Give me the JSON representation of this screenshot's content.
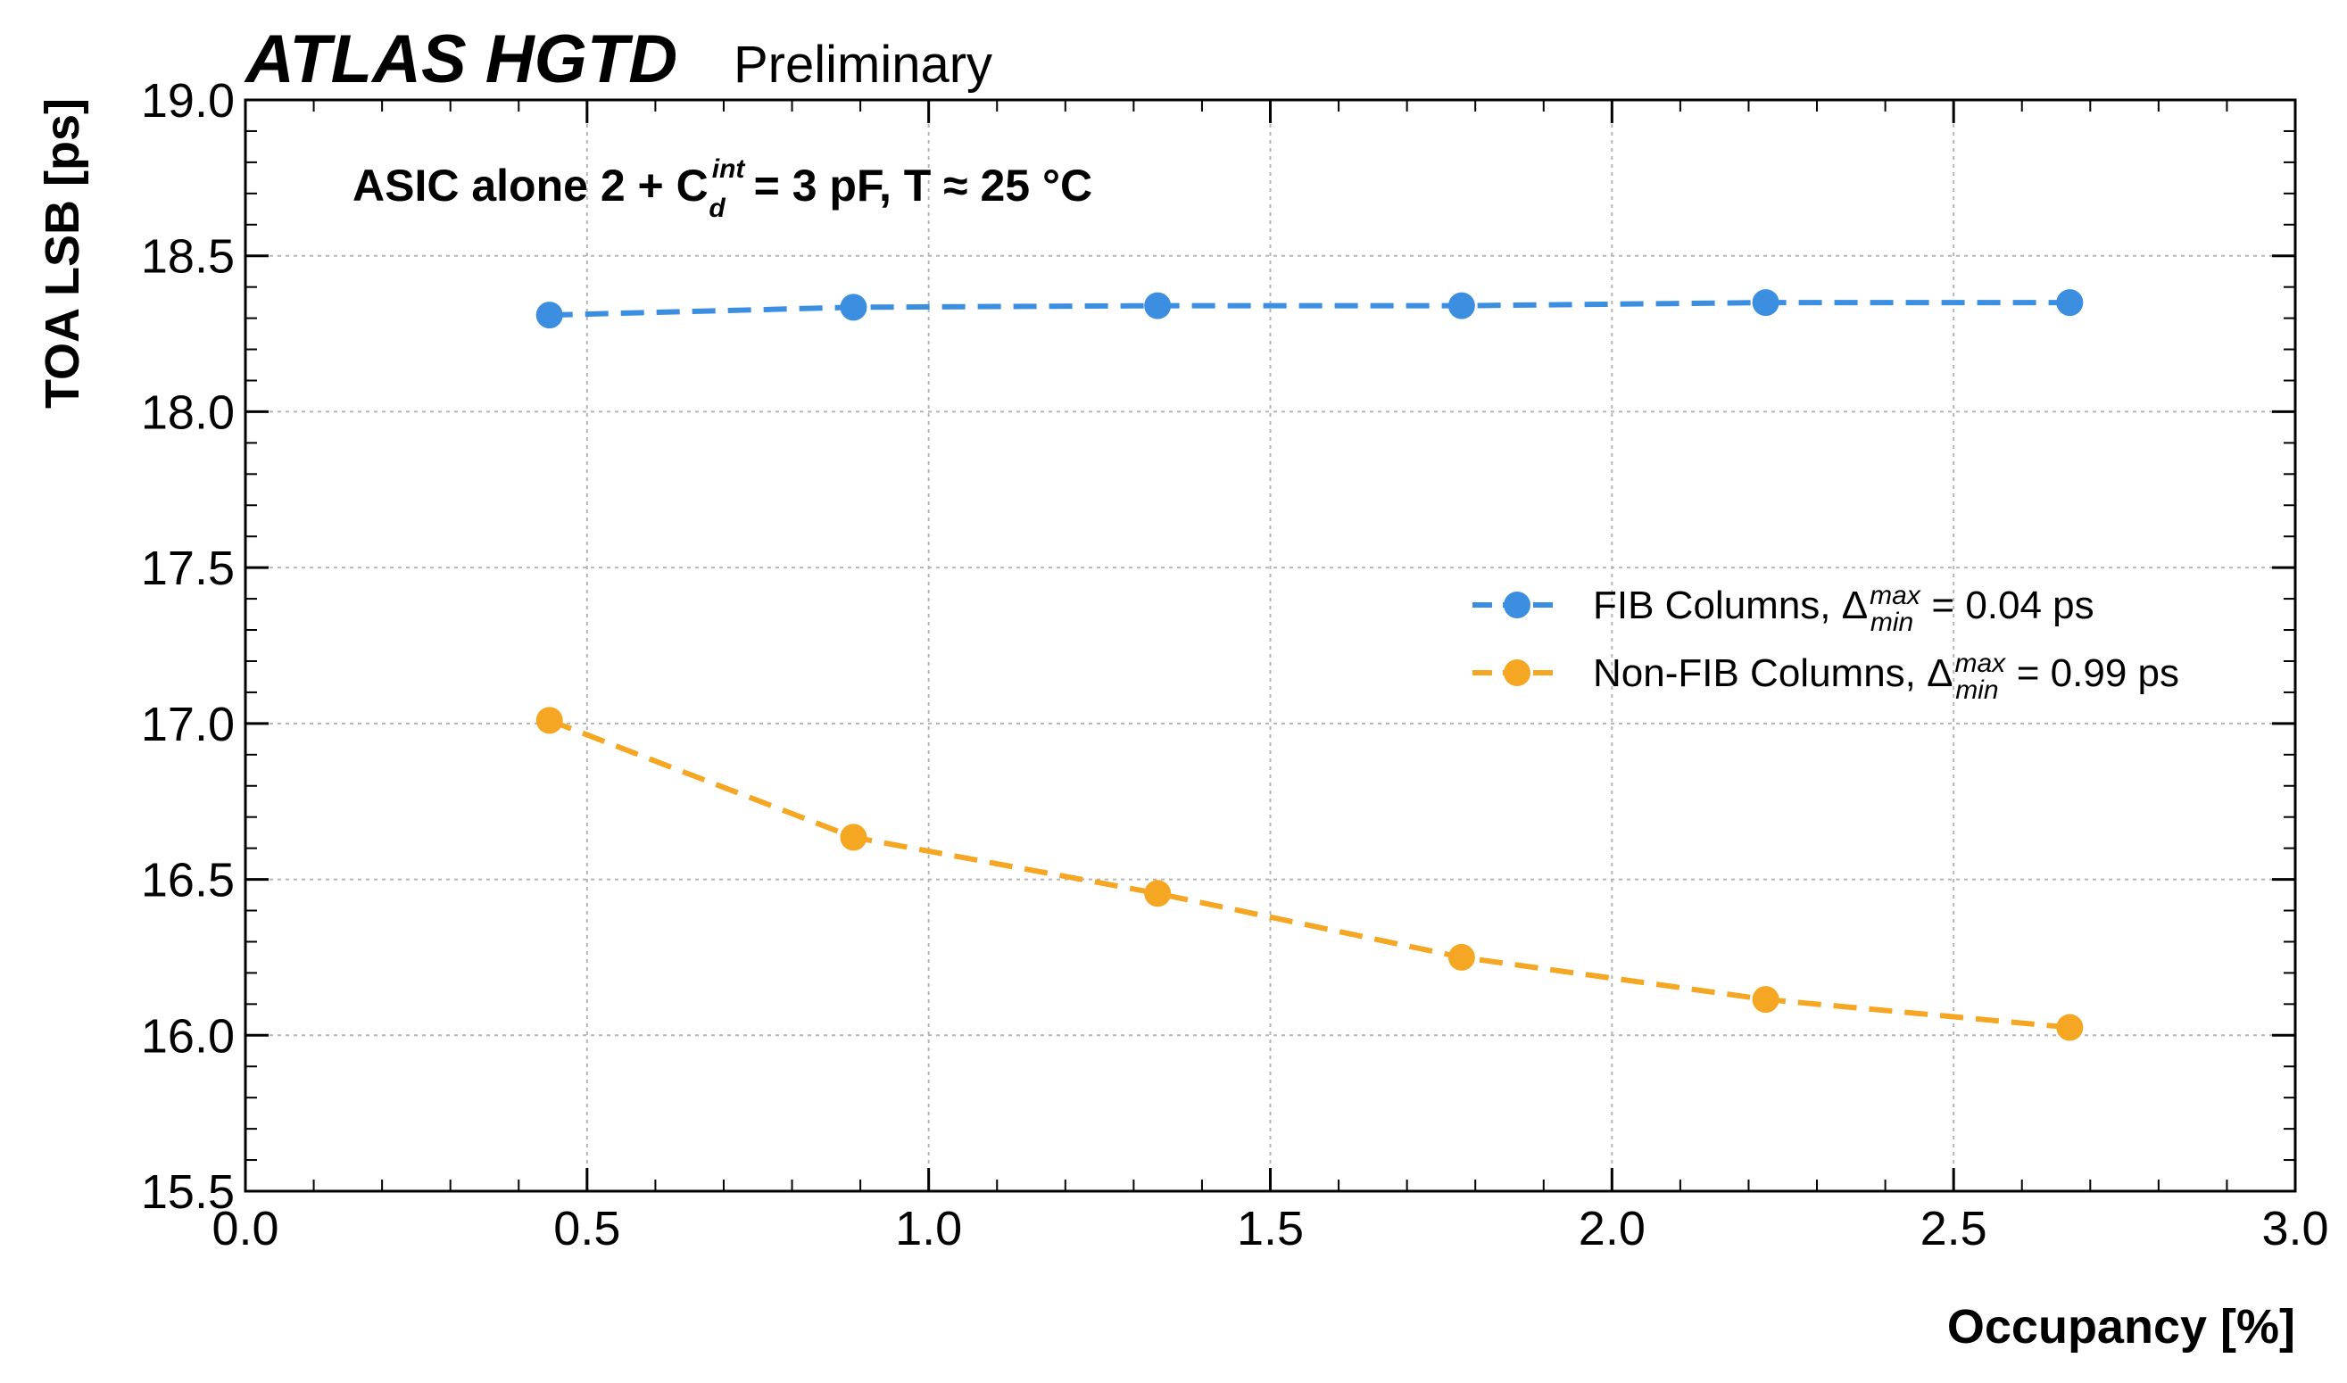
{
  "header": {
    "experiment": "ATLAS HGTD",
    "status": "Preliminary"
  },
  "annotation": {
    "prefix": "ASIC alone 2 + C",
    "sup": "int",
    "sub": "d",
    "suffix": " = 3 pF, T ≈ 25 °C"
  },
  "chart_data": {
    "type": "line",
    "title": "",
    "xlabel": "Occupancy [%]",
    "ylabel": "TOA LSB [ps]",
    "xlim": [
      0.0,
      3.0
    ],
    "ylim": [
      15.5,
      19.0
    ],
    "x_ticks": [
      "0.0",
      "0.5",
      "1.0",
      "1.5",
      "2.0",
      "2.5",
      "3.0"
    ],
    "y_ticks": [
      "15.5",
      "16.0",
      "16.5",
      "17.0",
      "17.5",
      "18.0",
      "18.5",
      "19.0"
    ],
    "grid": true,
    "legend_position": "center-right",
    "series": [
      {
        "name": "FIB Columns",
        "legend_prefix": "FIB Columns, Δ",
        "legend_sup": "max",
        "legend_sub": "min",
        "legend_suffix": " = 0.04 ps",
        "color": "#3c8fe0",
        "x": [
          0.445,
          0.89,
          1.335,
          1.78,
          2.225,
          2.67
        ],
        "y": [
          18.31,
          18.335,
          18.34,
          18.34,
          18.35,
          18.35
        ]
      },
      {
        "name": "Non-FIB Columns",
        "legend_prefix": "Non-FIB Columns, Δ",
        "legend_sup": "max",
        "legend_sub": "min",
        "legend_suffix": " = 0.99 ps",
        "color": "#f5a623",
        "x": [
          0.445,
          0.89,
          1.335,
          1.78,
          2.225,
          2.67
        ],
        "y": [
          17.01,
          16.635,
          16.455,
          16.25,
          16.115,
          16.025
        ]
      }
    ]
  }
}
